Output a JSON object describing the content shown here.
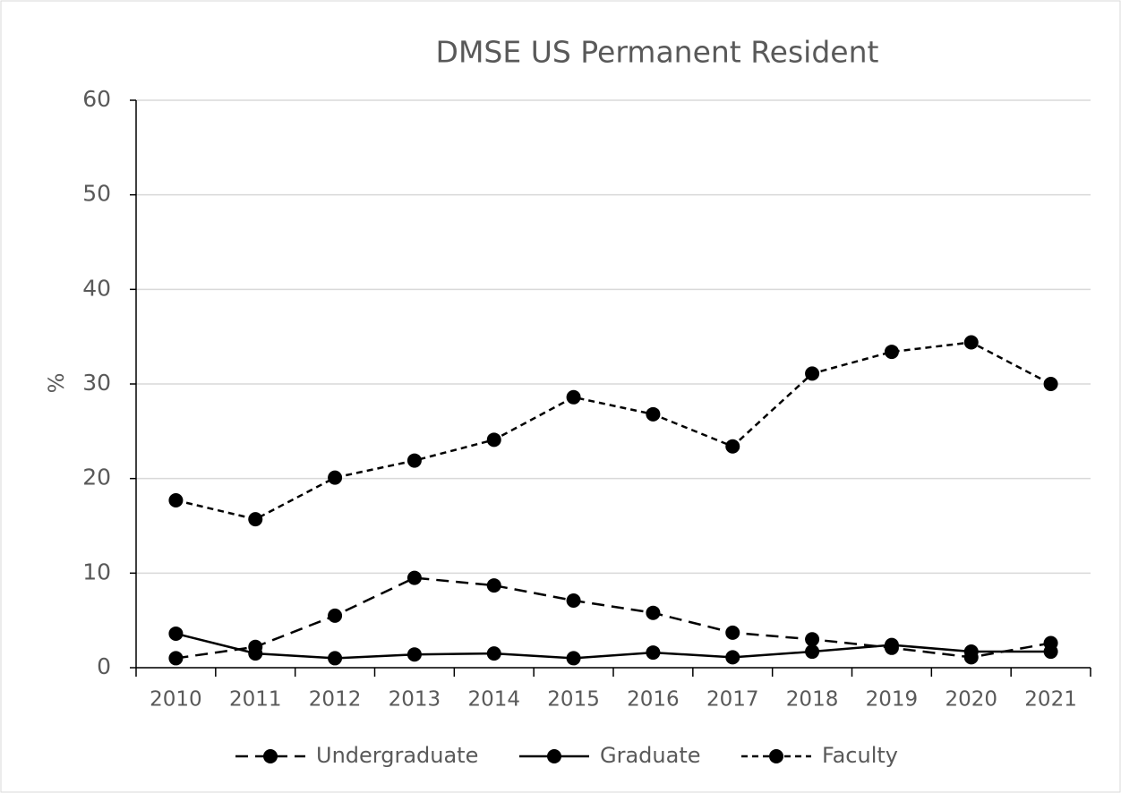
{
  "chart_data": {
    "type": "line",
    "title": "DMSE US Permanent Resident",
    "ylabel": "%",
    "categories": [
      "2010",
      "2011",
      "2012",
      "2013",
      "2014",
      "2015",
      "2016",
      "2017",
      "2018",
      "2019",
      "2020",
      "2021"
    ],
    "series": [
      {
        "name": "Undergraduate",
        "color": "#000000",
        "line_style": "dashed",
        "values": [
          1.0,
          2.2,
          5.5,
          9.5,
          8.7,
          7.1,
          5.8,
          3.7,
          3.0,
          2.1,
          1.1,
          2.6
        ]
      },
      {
        "name": "Graduate",
        "color": "#000000",
        "line_style": "solid",
        "values": [
          3.6,
          1.5,
          1.0,
          1.4,
          1.5,
          1.0,
          1.6,
          1.1,
          1.7,
          2.4,
          1.7,
          1.7
        ]
      },
      {
        "name": "Faculty",
        "color": "#000000",
        "line_style": "dotted",
        "values": [
          17.7,
          15.7,
          20.1,
          21.9,
          24.1,
          28.6,
          26.8,
          23.4,
          31.1,
          33.4,
          34.4,
          30.0
        ]
      }
    ],
    "ylim": [
      0,
      60
    ],
    "yticks": [
      0,
      10,
      20,
      30,
      40,
      50,
      60
    ],
    "grid": true,
    "legend": "bottom"
  }
}
